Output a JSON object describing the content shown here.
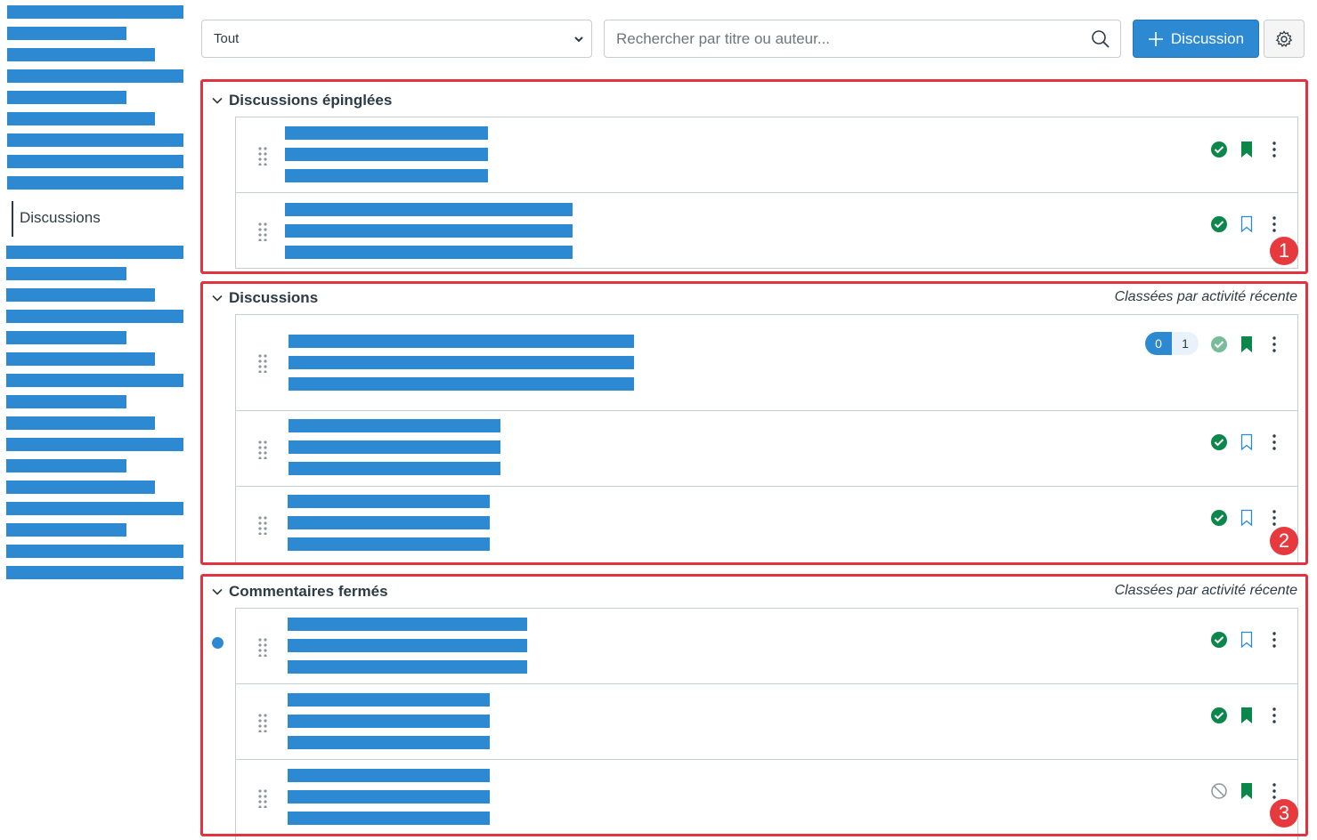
{
  "sidebar": {
    "active_item": "Discussions"
  },
  "toolbar": {
    "filter_value": "Tout",
    "search_placeholder": "Rechercher par titre ou auteur...",
    "add_button_label": "Discussion"
  },
  "groups": [
    {
      "title": "Discussions épinglées",
      "sort_note": ""
    },
    {
      "title": "Discussions",
      "sort_note": "Classées par activité récente"
    },
    {
      "title": "Commentaires fermés",
      "sort_note": "Classées par activité récente"
    }
  ],
  "unread_pill": {
    "unread": "0",
    "total": "1"
  },
  "annotations": [
    "1",
    "2",
    "3"
  ],
  "icons": {
    "published": "check-circle-icon",
    "not_published": "no-entry-icon",
    "bookmark": "bookmark-icon",
    "menu": "kebab-menu-icon",
    "drag": "drag-handle-icon"
  },
  "colors": {
    "brand": "#2d8ad2",
    "success": "#0b874b",
    "annotation": "#e0333f"
  }
}
